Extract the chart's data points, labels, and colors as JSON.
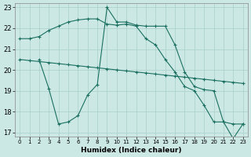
{
  "xlabel": "Humidex (Indice chaleur)",
  "bg_color": "#cce8e4",
  "line_color": "#1a7060",
  "grid_color": "#aacfcb",
  "xlim": [
    -0.5,
    23.5
  ],
  "ylim": [
    16.8,
    23.2
  ],
  "yticks": [
    17,
    18,
    19,
    20,
    21,
    22,
    23
  ],
  "xticks": [
    0,
    1,
    2,
    3,
    4,
    5,
    6,
    7,
    8,
    9,
    10,
    11,
    12,
    13,
    14,
    15,
    16,
    17,
    18,
    19,
    20,
    21,
    22,
    23
  ],
  "line1_x": [
    0,
    1,
    2,
    3,
    4,
    5,
    6,
    7,
    8,
    9,
    10,
    11,
    12,
    13,
    14,
    15,
    16,
    17,
    18,
    19,
    20,
    21,
    22,
    23
  ],
  "line1_y": [
    21.5,
    21.5,
    21.6,
    21.9,
    22.1,
    22.3,
    22.4,
    22.45,
    22.45,
    22.2,
    22.15,
    22.2,
    22.1,
    21.5,
    21.2,
    20.5,
    19.9,
    19.2,
    19.0,
    18.3,
    17.5,
    17.5,
    17.4,
    17.4
  ],
  "line2_x": [
    0,
    1,
    2,
    3,
    4,
    5,
    6,
    7,
    8,
    9,
    10,
    11,
    12,
    13,
    14,
    15,
    16,
    17,
    18,
    19,
    20,
    21,
    22,
    23
  ],
  "line2_y": [
    20.5,
    20.45,
    20.4,
    20.35,
    20.3,
    20.25,
    20.2,
    20.15,
    20.1,
    20.05,
    20.0,
    19.95,
    19.9,
    19.85,
    19.8,
    19.75,
    19.7,
    19.65,
    19.6,
    19.55,
    19.5,
    19.45,
    19.4,
    19.35
  ],
  "line3_x": [
    2,
    3,
    4,
    5,
    6,
    7,
    8,
    9,
    10,
    11,
    12,
    13,
    14,
    15,
    16,
    17,
    18,
    19,
    20,
    21,
    22,
    23
  ],
  "line3_y": [
    20.5,
    19.1,
    17.4,
    17.5,
    17.8,
    18.8,
    19.3,
    23.0,
    22.3,
    22.3,
    22.15,
    22.1,
    22.1,
    22.1,
    21.2,
    19.9,
    19.2,
    19.05,
    19.0,
    17.5,
    16.7,
    17.4
  ]
}
